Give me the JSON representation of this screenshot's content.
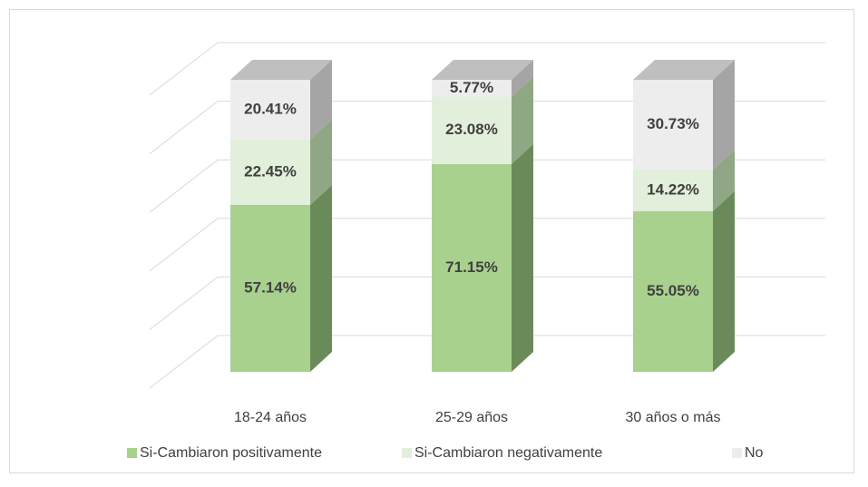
{
  "chart_data": {
    "type": "bar3d_stacked",
    "categories": [
      "18-24 años",
      "25-29 años",
      "30 años o más"
    ],
    "series": [
      {
        "name": "Si-Cambiaron positivamente",
        "color": "#a9d18e",
        "side_color": "#6b8a59",
        "values": [
          57.14,
          71.15,
          55.05
        ],
        "value_labels": [
          "57.14%",
          "71.15%",
          "55.05%"
        ]
      },
      {
        "name": "Si-Cambiaron negativamente",
        "color": "#e2efda",
        "side_color": "#8fa784",
        "values": [
          22.45,
          23.08,
          14.22
        ],
        "value_labels": [
          "22.45%",
          "23.08%",
          "14.22%"
        ]
      },
      {
        "name": "No",
        "color": "#ededed",
        "side_color": "#a5a5a5",
        "values": [
          20.41,
          5.77,
          30.73
        ],
        "value_labels": [
          "20.41%",
          "5.77%",
          "30.73%"
        ]
      }
    ],
    "ylim": [
      0,
      100
    ],
    "yticks": [
      0,
      20,
      40,
      60,
      80,
      100
    ],
    "grid": true,
    "legend": "bottom"
  }
}
